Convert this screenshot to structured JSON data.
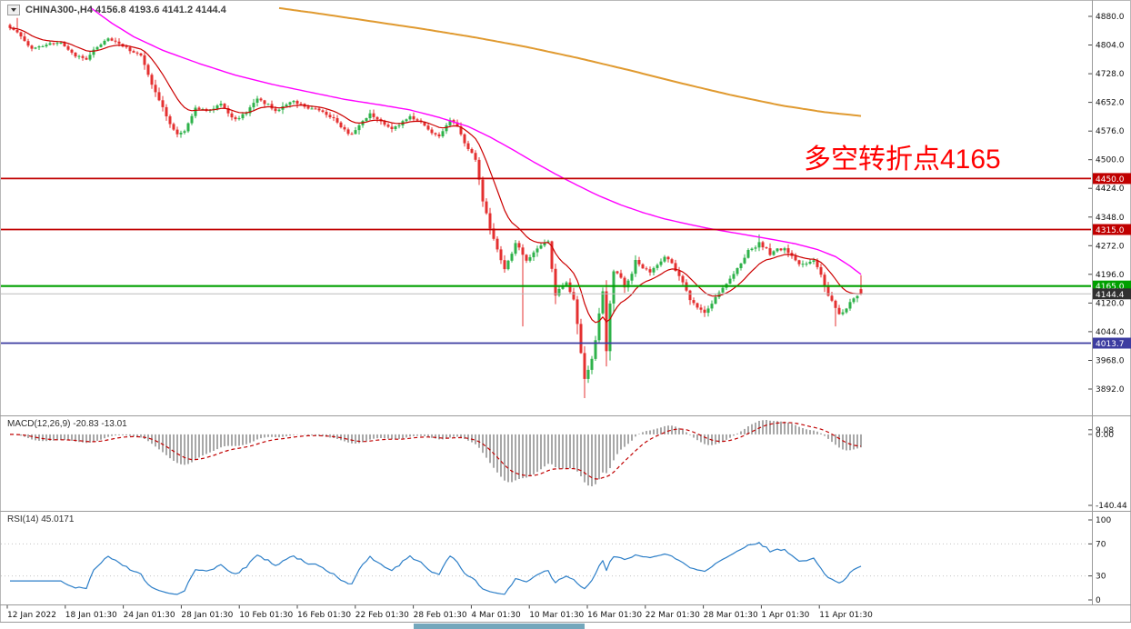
{
  "window": {
    "title": "CHINA300-,H4   4156.8 4193.6 4141.2 4144.4"
  },
  "annotation": {
    "text": "多空转折点4165",
    "color": "#FF0000"
  },
  "scrollbar": {
    "thumb_color": "#74A7BC"
  },
  "chart_data": [
    {
      "type": "candlestick",
      "symbol": "CHINA300-",
      "timeframe": "H4",
      "last_bar": {
        "open": 4156.8,
        "high": 4193.6,
        "low": 4141.2,
        "close": 4144.4
      },
      "bars": 235,
      "colors": {
        "bull": "#2EB24A",
        "bear": "#E43030"
      },
      "y_ticks": [
        "4880.0",
        "4804.0",
        "4728.0",
        "4652.0",
        "4576.0",
        "4500.0",
        "4424.0",
        "4348.0",
        "4272.0",
        "4196.0",
        "4120.0",
        "4044.0",
        "3968.0",
        "3892.0"
      ],
      "x_ticks": [
        "12 Jan 2022",
        "18 Jan 01:30",
        "24 Jan 01:30",
        "28 Jan 01:30",
        "10 Feb 01:30",
        "16 Feb 01:30",
        "22 Feb 01:30",
        "28 Feb 01:30",
        "4 Mar 01:30",
        "10 Mar 01:30",
        "16 Mar 01:30",
        "22 Mar 01:30",
        "28 Mar 01:30",
        "1 Apr 01:30",
        "11 Apr 01:30"
      ],
      "levels": [
        {
          "price": 4450.0,
          "label": "4450.0",
          "color": "#C00000",
          "width": 1.8
        },
        {
          "price": 4315.0,
          "label": "4315.0",
          "color": "#C00000",
          "width": 1.8
        },
        {
          "price": 4165.0,
          "label": "4165.0",
          "color": "#00A000",
          "width": 2.2
        },
        {
          "price": 4144.4,
          "label": "4144.4",
          "color": "#BBBBBB",
          "width": 1,
          "label_bg": "#303030",
          "is_current": true
        },
        {
          "price": 4013.7,
          "label": "4013.7",
          "color": "#3C3CA0",
          "width": 1.8
        }
      ],
      "close_anchors": [
        [
          0,
          4850
        ],
        [
          3,
          4828
        ],
        [
          6,
          4792
        ],
        [
          10,
          4808
        ],
        [
          14,
          4812
        ],
        [
          18,
          4776
        ],
        [
          21,
          4768
        ],
        [
          24,
          4800
        ],
        [
          27,
          4820
        ],
        [
          30,
          4806
        ],
        [
          33,
          4790
        ],
        [
          36,
          4780
        ],
        [
          39,
          4702
        ],
        [
          42,
          4640
        ],
        [
          44,
          4592
        ],
        [
          46,
          4568
        ],
        [
          48,
          4574
        ],
        [
          51,
          4640
        ],
        [
          54,
          4628
        ],
        [
          58,
          4645
        ],
        [
          62,
          4606
        ],
        [
          65,
          4625
        ],
        [
          68,
          4660
        ],
        [
          71,
          4645
        ],
        [
          73,
          4630
        ],
        [
          76,
          4648
        ],
        [
          78,
          4656
        ],
        [
          81,
          4640
        ],
        [
          85,
          4632
        ],
        [
          88,
          4615
        ],
        [
          90,
          4600
        ],
        [
          92,
          4578
        ],
        [
          94,
          4565
        ],
        [
          96,
          4590
        ],
        [
          99,
          4622
        ],
        [
          102,
          4600
        ],
        [
          105,
          4580
        ],
        [
          108,
          4600
        ],
        [
          110,
          4616
        ],
        [
          113,
          4598
        ],
        [
          115,
          4580
        ],
        [
          118,
          4560
        ],
        [
          121,
          4606
        ],
        [
          123,
          4590
        ],
        [
          125,
          4545
        ],
        [
          127,
          4515
        ],
        [
          128,
          4500
        ],
        [
          129,
          4445
        ],
        [
          130,
          4390
        ],
        [
          132,
          4320
        ],
        [
          134,
          4262
        ],
        [
          136,
          4212
        ],
        [
          138,
          4252
        ],
        [
          139,
          4280
        ],
        [
          141,
          4248
        ],
        [
          142,
          4232
        ],
        [
          144,
          4252
        ],
        [
          145,
          4262
        ],
        [
          147,
          4278
        ],
        [
          148,
          4282
        ],
        [
          150,
          4142
        ],
        [
          151,
          4156
        ],
        [
          153,
          4172
        ],
        [
          155,
          4130
        ],
        [
          156,
          4062
        ],
        [
          157,
          3986
        ],
        [
          158,
          3922
        ],
        [
          159,
          3945
        ],
        [
          160,
          3975
        ],
        [
          161,
          4020
        ],
        [
          162,
          4090
        ],
        [
          163,
          4150
        ],
        [
          164,
          3990
        ],
        [
          165,
          4120
        ],
        [
          166,
          4205
        ],
        [
          168,
          4188
        ],
        [
          169,
          4162
        ],
        [
          171,
          4200
        ],
        [
          172,
          4232
        ],
        [
          174,
          4214
        ],
        [
          176,
          4202
        ],
        [
          178,
          4222
        ],
        [
          180,
          4242
        ],
        [
          182,
          4224
        ],
        [
          184,
          4192
        ],
        [
          186,
          4156
        ],
        [
          187,
          4130
        ],
        [
          189,
          4106
        ],
        [
          191,
          4092
        ],
        [
          193,
          4120
        ],
        [
          195,
          4150
        ],
        [
          197,
          4172
        ],
        [
          199,
          4200
        ],
        [
          201,
          4228
        ],
        [
          203,
          4258
        ],
        [
          205,
          4270
        ],
        [
          206,
          4280
        ],
        [
          208,
          4262
        ],
        [
          209,
          4250
        ],
        [
          211,
          4262
        ],
        [
          213,
          4262
        ],
        [
          215,
          4244
        ],
        [
          217,
          4222
        ],
        [
          219,
          4224
        ],
        [
          221,
          4232
        ],
        [
          223,
          4196
        ],
        [
          225,
          4140
        ],
        [
          227,
          4108
        ],
        [
          228,
          4092
        ],
        [
          230,
          4104
        ],
        [
          231,
          4120
        ],
        [
          233,
          4138
        ],
        [
          234,
          4144
        ]
      ],
      "wick_overrides": {
        "2": {
          "high": 4876
        },
        "141": {
          "low": 4058
        },
        "158": {
          "low": 3868
        },
        "164": {
          "low": 3952
        },
        "206": {
          "high": 4302
        },
        "227": {
          "low": 4058
        }
      },
      "moving_averages": [
        {
          "name": "fast-ma",
          "color": "#CC0000",
          "period": 13,
          "method": "ema-of-closes",
          "width": 1.2
        },
        {
          "name": "mid-ma",
          "color": "#FF00FF",
          "width": 1.4,
          "anchors": [
            [
              22,
              4904
            ],
            [
              28,
              4862
            ],
            [
              34,
              4826
            ],
            [
              42,
              4790
            ],
            [
              52,
              4755
            ],
            [
              62,
              4724
            ],
            [
              72,
              4700
            ],
            [
              82,
              4680
            ],
            [
              92,
              4660
            ],
            [
              102,
              4645
            ],
            [
              110,
              4632
            ],
            [
              118,
              4612
            ],
            [
              126,
              4588
            ],
            [
              132,
              4560
            ],
            [
              138,
              4528
            ],
            [
              144,
              4494
            ],
            [
              150,
              4462
            ],
            [
              156,
              4432
            ],
            [
              162,
              4404
            ],
            [
              168,
              4380
            ],
            [
              174,
              4360
            ],
            [
              180,
              4343
            ],
            [
              186,
              4330
            ],
            [
              192,
              4318
            ],
            [
              198,
              4308
            ],
            [
              204,
              4298
            ],
            [
              210,
              4288
            ],
            [
              216,
              4277
            ],
            [
              222,
              4262
            ],
            [
              227,
              4243
            ],
            [
              231,
              4218
            ],
            [
              234,
              4196
            ]
          ]
        },
        {
          "name": "slow-ma",
          "color": "#E09A30",
          "width": 2,
          "anchors": [
            [
              74,
              4902
            ],
            [
              86,
              4886
            ],
            [
              100,
              4866
            ],
            [
              114,
              4846
            ],
            [
              128,
              4824
            ],
            [
              142,
              4799
            ],
            [
              156,
              4770
            ],
            [
              170,
              4738
            ],
            [
              184,
              4704
            ],
            [
              198,
              4672
            ],
            [
              212,
              4644
            ],
            [
              224,
              4626
            ],
            [
              234,
              4616
            ]
          ]
        }
      ]
    },
    {
      "type": "bar",
      "name": "MACD",
      "title": "MACD(12,26,9) -20.83 -13.01",
      "params": [
        12,
        26,
        9
      ],
      "current_values": [
        -20.83,
        -13.01
      ],
      "y_ticks": [
        "9.08",
        "0.00",
        "-140.44"
      ],
      "range": [
        9.08,
        -140.44
      ],
      "histogram_color": "#A8A8A8",
      "signal_color": "#C00000"
    },
    {
      "type": "line",
      "name": "RSI",
      "title": "RSI(14) 45.0171",
      "period": 14,
      "current_value": 45.0171,
      "y_ticks": [
        "100",
        "70",
        "30",
        "0"
      ],
      "levels": [
        70,
        30
      ],
      "range": [
        0,
        100
      ],
      "line_color": "#2D7FC8"
    }
  ]
}
